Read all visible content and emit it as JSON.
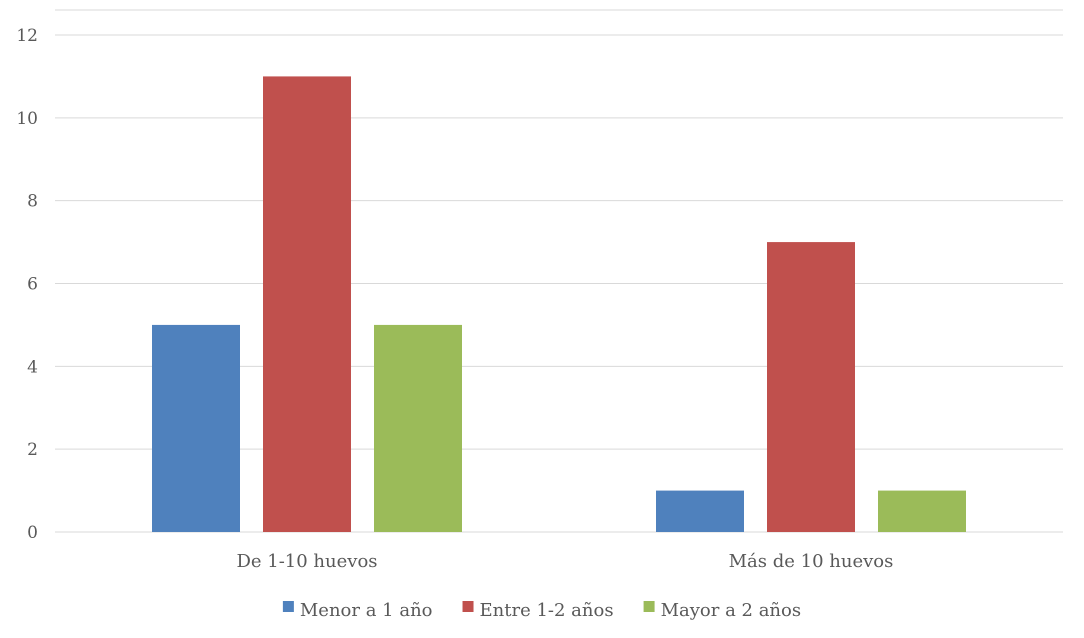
{
  "chart_data": {
    "type": "bar",
    "title": "",
    "xlabel": "",
    "ylabel": "",
    "categories": [
      "De 1-10 huevos",
      "Más de 10 huevos"
    ],
    "series": [
      {
        "name": "Menor a 1 año",
        "values": [
          5,
          1
        ],
        "color": "#4f81bd"
      },
      {
        "name": "Entre 1-2 años",
        "values": [
          11,
          7
        ],
        "color": "#c0504d"
      },
      {
        "name": "Mayor a 2 años",
        "values": [
          5,
          1
        ],
        "color": "#9bbb59"
      }
    ],
    "ylim": [
      0,
      12
    ],
    "yticks": [
      0,
      2,
      4,
      6,
      8,
      10,
      12
    ],
    "grid": true,
    "legend_position": "bottom"
  },
  "colors": {
    "gridline": "#d9d9d9",
    "text": "#595959",
    "background": "#ffffff"
  }
}
